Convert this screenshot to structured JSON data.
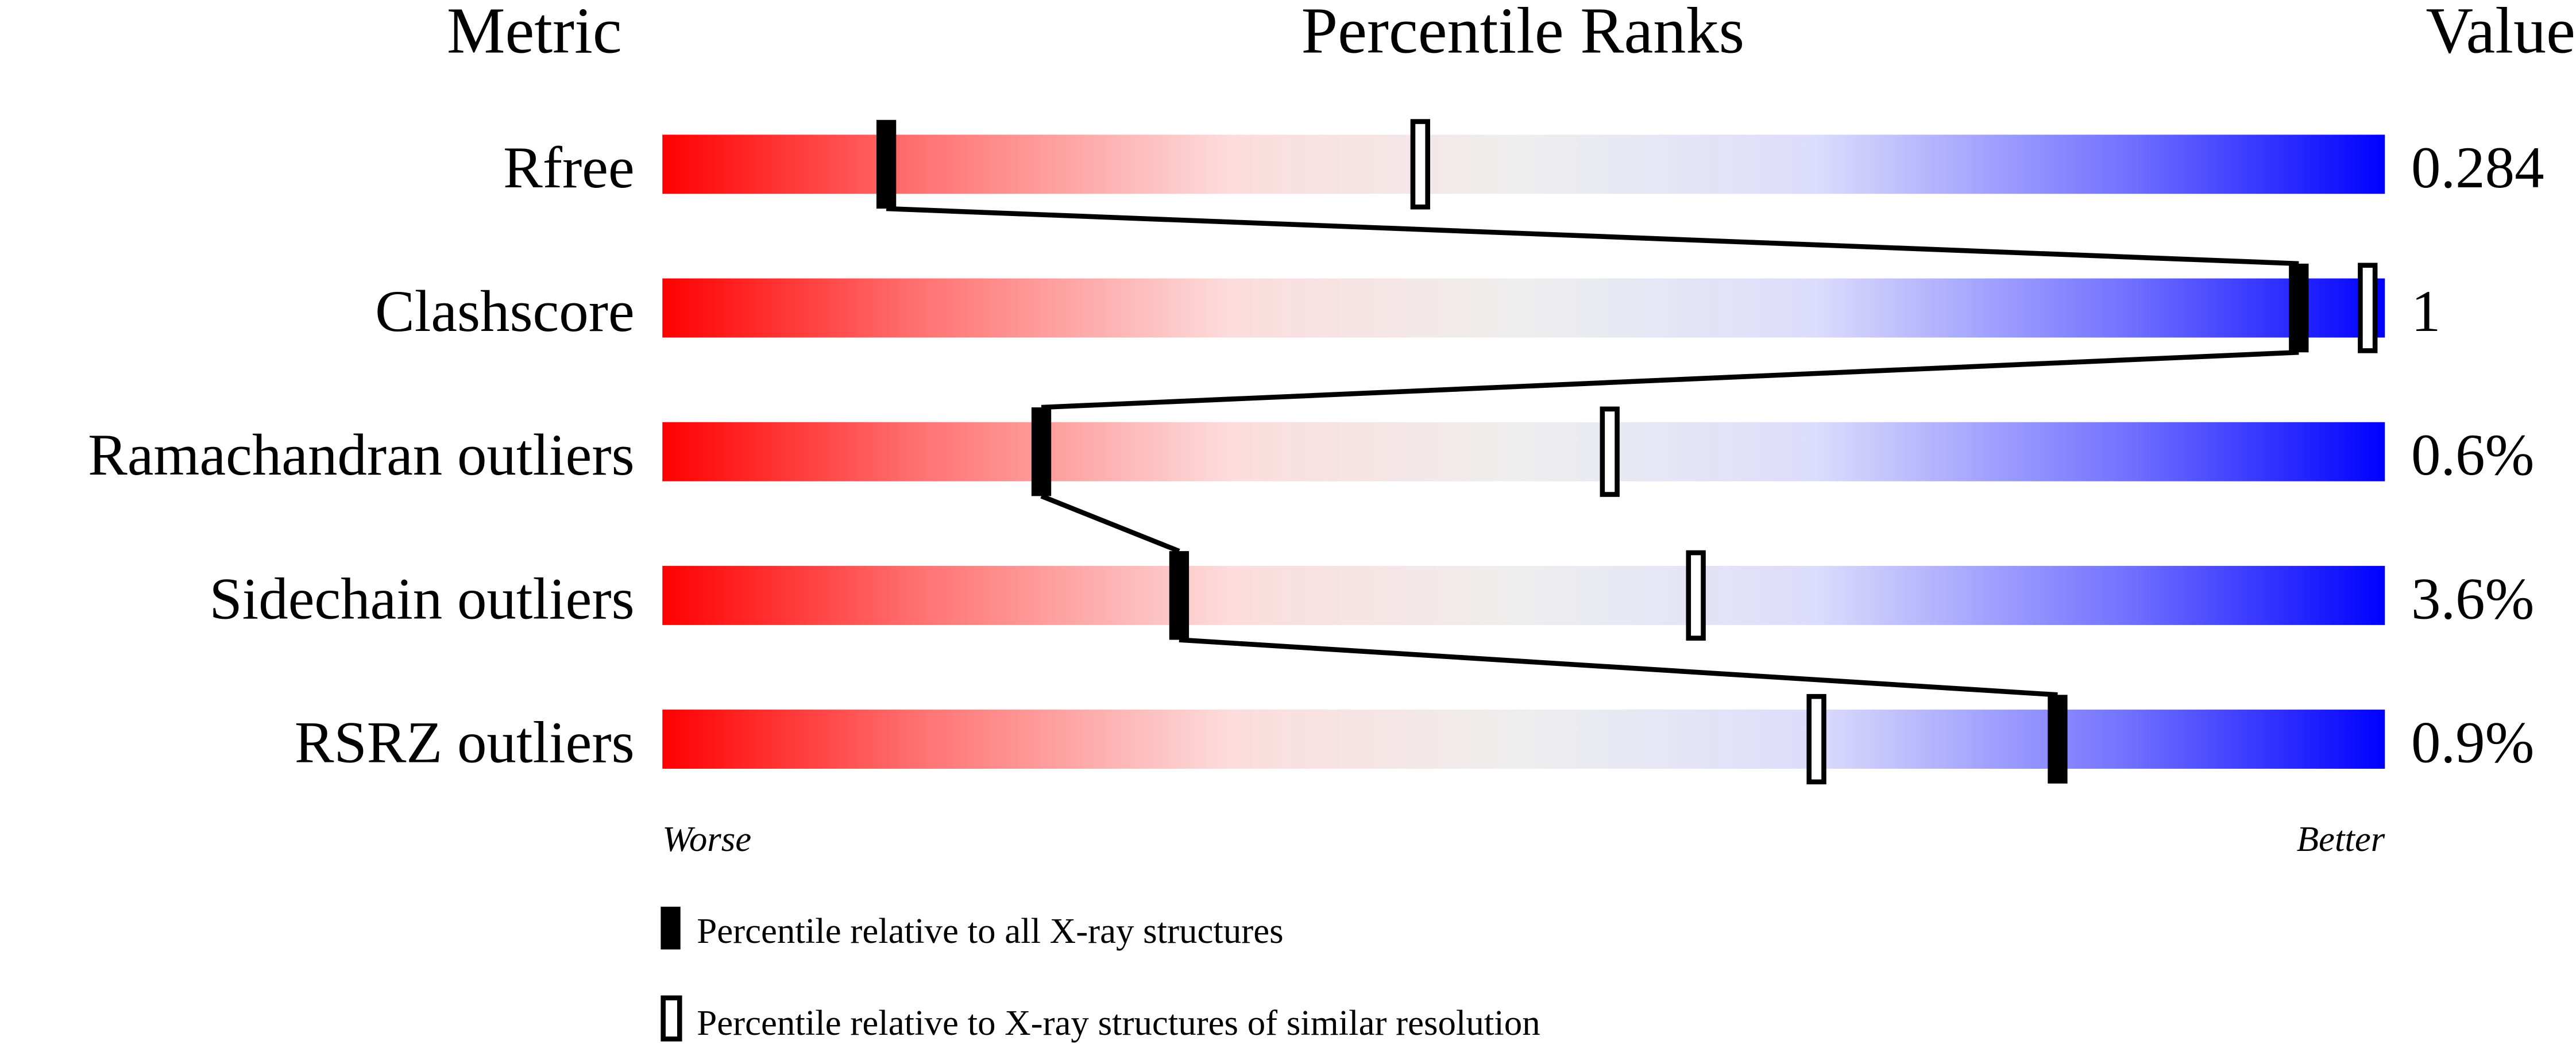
{
  "chart_data": {
    "type": "percentile-slider",
    "headers": {
      "metric": "Metric",
      "ranks": "Percentile Ranks",
      "value": "Value"
    },
    "xlim": [
      0,
      100
    ],
    "rows": [
      {
        "metric": "Rfree",
        "value": "0.284",
        "percentile_all": 13,
        "percentile_similar": 44
      },
      {
        "metric": "Clashscore",
        "value": "1",
        "percentile_all": 95,
        "percentile_similar": 99
      },
      {
        "metric": "Ramachandran outliers",
        "value": "0.6%",
        "percentile_all": 22,
        "percentile_similar": 55
      },
      {
        "metric": "Sidechain outliers",
        "value": "3.6%",
        "percentile_all": 30,
        "percentile_similar": 60
      },
      {
        "metric": "RSRZ outliers",
        "value": "0.9%",
        "percentile_all": 81,
        "percentile_similar": 67
      }
    ],
    "scale_labels": {
      "worse": "Worse",
      "better": "Better"
    },
    "legend": [
      {
        "marker": "filled",
        "label": "Percentile relative to all X-ray structures"
      },
      {
        "marker": "open",
        "label": "Percentile relative to X-ray structures of similar resolution"
      }
    ],
    "colors": {
      "worse": "#ff0000",
      "middle": "#eeeeee",
      "better": "#0000ff",
      "marker": "#000000"
    }
  }
}
